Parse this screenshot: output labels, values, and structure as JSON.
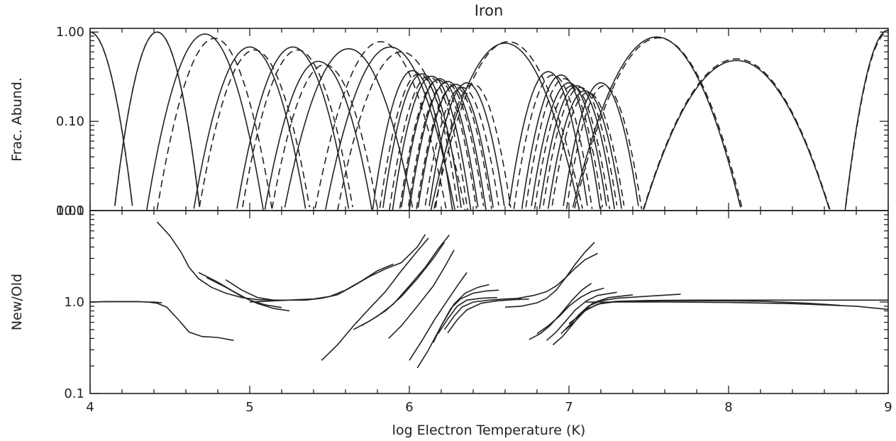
{
  "chart_data": [
    {
      "type": "line",
      "title": "Iron",
      "xlabel": "",
      "ylabel": "Frac. Abund.",
      "xlim": [
        4,
        9
      ],
      "ylim": [
        0.01,
        1.1
      ],
      "yscale": "log",
      "x_ticks": [],
      "y_ticks": [
        "0.01",
        "0.10",
        "1.00"
      ],
      "line_styles": [
        "solid",
        "dashed"
      ],
      "solid_peaks": [
        {
          "x": 4.0,
          "y": 1.0
        },
        {
          "x": 4.42,
          "y": 1.0
        },
        {
          "x": 4.72,
          "y": 0.95
        },
        {
          "x": 5.0,
          "y": 0.68
        },
        {
          "x": 5.27,
          "y": 0.68
        },
        {
          "x": 5.43,
          "y": 0.47
        },
        {
          "x": 5.62,
          "y": 0.65
        },
        {
          "x": 5.88,
          "y": 0.68
        },
        {
          "x": 6.02,
          "y": 0.37
        },
        {
          "x": 6.08,
          "y": 0.34
        },
        {
          "x": 6.14,
          "y": 0.32
        },
        {
          "x": 6.19,
          "y": 0.3
        },
        {
          "x": 6.24,
          "y": 0.28
        },
        {
          "x": 6.29,
          "y": 0.26
        },
        {
          "x": 6.36,
          "y": 0.27
        },
        {
          "x": 6.6,
          "y": 0.75
        },
        {
          "x": 6.87,
          "y": 0.36
        },
        {
          "x": 6.95,
          "y": 0.33
        },
        {
          "x": 7.0,
          "y": 0.27
        },
        {
          "x": 7.05,
          "y": 0.25
        },
        {
          "x": 7.1,
          "y": 0.22
        },
        {
          "x": 7.2,
          "y": 0.27
        },
        {
          "x": 7.55,
          "y": 0.88
        },
        {
          "x": 8.05,
          "y": 0.48
        },
        {
          "x": 9.0,
          "y": 1.05
        }
      ],
      "dashed_peaks": [
        {
          "x": 4.0,
          "y": 1.0
        },
        {
          "x": 4.42,
          "y": 1.0
        },
        {
          "x": 4.78,
          "y": 0.85
        },
        {
          "x": 5.03,
          "y": 0.63
        },
        {
          "x": 5.3,
          "y": 0.63
        },
        {
          "x": 5.47,
          "y": 0.43
        },
        {
          "x": 5.82,
          "y": 0.78
        },
        {
          "x": 5.95,
          "y": 0.6
        },
        {
          "x": 6.06,
          "y": 0.34
        },
        {
          "x": 6.12,
          "y": 0.32
        },
        {
          "x": 6.18,
          "y": 0.29
        },
        {
          "x": 6.23,
          "y": 0.27
        },
        {
          "x": 6.28,
          "y": 0.25
        },
        {
          "x": 6.33,
          "y": 0.24
        },
        {
          "x": 6.4,
          "y": 0.26
        },
        {
          "x": 6.62,
          "y": 0.78
        },
        {
          "x": 6.9,
          "y": 0.33
        },
        {
          "x": 6.97,
          "y": 0.3
        },
        {
          "x": 7.02,
          "y": 0.25
        },
        {
          "x": 7.07,
          "y": 0.24
        },
        {
          "x": 7.12,
          "y": 0.21
        },
        {
          "x": 7.22,
          "y": 0.25
        },
        {
          "x": 7.56,
          "y": 0.86
        },
        {
          "x": 8.05,
          "y": 0.5
        },
        {
          "x": 9.0,
          "y": 1.0
        }
      ]
    },
    {
      "type": "line",
      "title": "",
      "xlabel": "log Electron Temperature (K)",
      "ylabel": "New/Old",
      "xlim": [
        4,
        9
      ],
      "ylim": [
        0.1,
        10.0
      ],
      "yscale": "log",
      "x_ticks": [
        "4",
        "5",
        "6",
        "7",
        "8",
        "9"
      ],
      "y_ticks": [
        "0.1",
        "1.0",
        "10.0"
      ],
      "series": [
        {
          "x": [
            4.0,
            4.1,
            4.2,
            4.3,
            4.35,
            4.4,
            4.45
          ],
          "y": [
            1.0,
            1.01,
            1.01,
            1.01,
            1.0,
            1.0,
            0.98
          ]
        },
        {
          "x": [
            4.0,
            4.1,
            4.2,
            4.3,
            4.36,
            4.42,
            4.48,
            4.55,
            4.62,
            4.7,
            4.8,
            4.9
          ],
          "y": [
            1.0,
            1.01,
            1.01,
            1.01,
            1.0,
            0.97,
            0.88,
            0.65,
            0.47,
            0.42,
            0.41,
            0.38
          ]
        },
        {
          "x": [
            4.42,
            4.5,
            4.57,
            4.62,
            4.68,
            4.76,
            4.85,
            4.95,
            5.05,
            5.15
          ],
          "y": [
            7.5,
            5.3,
            3.5,
            2.4,
            1.8,
            1.45,
            1.25,
            1.12,
            1.06,
            1.05
          ]
        },
        {
          "x": [
            4.68,
            4.8,
            4.9,
            5.0,
            5.1,
            5.2
          ],
          "y": [
            2.1,
            1.65,
            1.3,
            1.05,
            0.93,
            0.87
          ]
        },
        {
          "x": [
            4.73,
            4.85,
            4.95,
            5.05,
            5.15,
            5.25
          ],
          "y": [
            1.85,
            1.45,
            1.15,
            0.96,
            0.85,
            0.8
          ]
        },
        {
          "x": [
            4.85,
            4.95,
            5.05,
            5.15,
            5.25,
            5.35,
            5.45,
            5.55,
            5.65,
            5.75,
            5.85,
            5.95,
            6.05,
            6.1
          ],
          "y": [
            1.75,
            1.35,
            1.12,
            1.05,
            1.05,
            1.05,
            1.1,
            1.2,
            1.5,
            1.9,
            2.3,
            2.7,
            4.0,
            5.5
          ]
        },
        {
          "x": [
            5.0,
            5.1,
            5.2,
            5.3,
            5.4,
            5.5,
            5.6,
            5.7,
            5.8,
            5.9
          ],
          "y": [
            1.0,
            1.02,
            1.04,
            1.06,
            1.08,
            1.15,
            1.35,
            1.7,
            2.2,
            2.6
          ]
        },
        {
          "x": [
            5.45,
            5.55,
            5.65,
            5.75,
            5.85,
            5.95,
            6.05,
            6.12
          ],
          "y": [
            0.23,
            0.34,
            0.55,
            0.85,
            1.3,
            2.2,
            3.6,
            5.0
          ]
        },
        {
          "x": [
            5.65,
            5.75,
            5.85,
            5.95,
            6.05,
            6.15,
            6.22
          ],
          "y": [
            0.5,
            0.62,
            0.8,
            1.15,
            1.8,
            3.0,
            4.5
          ]
        },
        {
          "x": [
            5.7,
            5.8,
            5.9,
            6.0,
            6.1,
            6.18,
            6.25
          ],
          "y": [
            0.55,
            0.7,
            0.95,
            1.5,
            2.4,
            3.8,
            5.4
          ]
        },
        {
          "x": [
            5.87,
            5.95,
            6.05,
            6.15,
            6.22,
            6.28
          ],
          "y": [
            0.4,
            0.55,
            0.9,
            1.5,
            2.4,
            3.7
          ]
        },
        {
          "x": [
            6.0,
            6.08,
            6.16,
            6.24,
            6.3,
            6.36
          ],
          "y": [
            0.23,
            0.38,
            0.65,
            1.05,
            1.5,
            2.1
          ]
        },
        {
          "x": [
            6.05,
            6.12,
            6.2,
            6.28,
            6.35,
            6.43,
            6.5
          ],
          "y": [
            0.19,
            0.3,
            0.55,
            0.95,
            1.25,
            1.45,
            1.55
          ]
        },
        {
          "x": [
            6.15,
            6.2,
            6.26,
            6.32,
            6.4,
            6.48,
            6.56
          ],
          "y": [
            0.36,
            0.55,
            0.85,
            1.08,
            1.25,
            1.32,
            1.35
          ]
        },
        {
          "x": [
            6.18,
            6.24,
            6.3,
            6.36,
            6.45,
            6.55
          ],
          "y": [
            0.45,
            0.65,
            0.9,
            1.05,
            1.1,
            1.12
          ]
        },
        {
          "x": [
            6.22,
            6.28,
            6.33,
            6.4,
            6.5,
            6.6,
            6.7
          ],
          "y": [
            0.5,
            0.7,
            0.88,
            1.0,
            1.05,
            1.08,
            1.1
          ]
        },
        {
          "x": [
            6.24,
            6.3,
            6.36,
            6.45,
            6.55,
            6.65,
            6.75
          ],
          "y": [
            0.46,
            0.64,
            0.82,
            0.97,
            1.03,
            1.06,
            1.08
          ]
        },
        {
          "x": [
            6.6,
            6.7,
            6.8,
            6.86,
            6.92,
            6.98,
            7.04,
            7.1,
            7.16
          ],
          "y": [
            0.88,
            0.9,
            0.98,
            1.1,
            1.35,
            1.85,
            2.6,
            3.5,
            4.5
          ]
        },
        {
          "x": [
            6.68,
            6.78,
            6.86,
            6.92,
            6.98,
            7.04,
            7.1,
            7.18
          ],
          "y": [
            1.1,
            1.18,
            1.3,
            1.5,
            1.85,
            2.35,
            2.9,
            3.4
          ]
        },
        {
          "x": [
            6.75,
            6.82,
            6.88,
            6.95,
            7.02,
            7.08,
            7.14
          ],
          "y": [
            0.39,
            0.45,
            0.55,
            0.75,
            1.05,
            1.35,
            1.6
          ]
        },
        {
          "x": [
            6.8,
            6.87,
            6.94,
            7.0,
            7.07,
            7.14,
            7.22
          ],
          "y": [
            0.45,
            0.55,
            0.7,
            0.9,
            1.12,
            1.3,
            1.42
          ]
        },
        {
          "x": [
            6.86,
            6.92,
            6.98,
            7.04,
            7.11,
            7.18,
            7.3
          ],
          "y": [
            0.38,
            0.47,
            0.62,
            0.82,
            1.03,
            1.18,
            1.28
          ]
        },
        {
          "x": [
            6.9,
            6.96,
            7.02,
            7.08,
            7.15,
            7.25,
            7.4
          ],
          "y": [
            0.34,
            0.42,
            0.56,
            0.76,
            0.98,
            1.12,
            1.2
          ]
        },
        {
          "x": [
            6.95,
            7.0,
            7.06,
            7.12,
            7.2,
            7.3,
            7.5,
            7.7
          ],
          "y": [
            0.45,
            0.55,
            0.72,
            0.9,
            1.03,
            1.1,
            1.16,
            1.22
          ]
        },
        {
          "x": [
            6.98,
            7.04,
            7.1,
            7.18,
            7.28,
            7.4,
            7.6,
            7.8,
            8.0,
            8.2,
            8.5,
            8.7
          ],
          "y": [
            0.5,
            0.62,
            0.8,
            0.95,
            1.0,
            1.02,
            1.03,
            1.03,
            1.03,
            1.02,
            0.97,
            0.92
          ]
        },
        {
          "x": [
            7.0,
            7.06,
            7.12,
            7.2,
            7.3,
            7.5,
            7.8,
            8.1,
            8.5,
            9.0
          ],
          "y": [
            0.58,
            0.7,
            0.85,
            0.97,
            1.02,
            1.04,
            1.05,
            1.05,
            1.05,
            1.05
          ]
        },
        {
          "x": [
            7.1,
            7.3,
            7.6,
            8.0,
            8.4,
            8.8,
            9.0
          ],
          "y": [
            1.0,
            1.0,
            1.0,
            0.99,
            0.96,
            0.9,
            0.83
          ]
        }
      ]
    }
  ]
}
